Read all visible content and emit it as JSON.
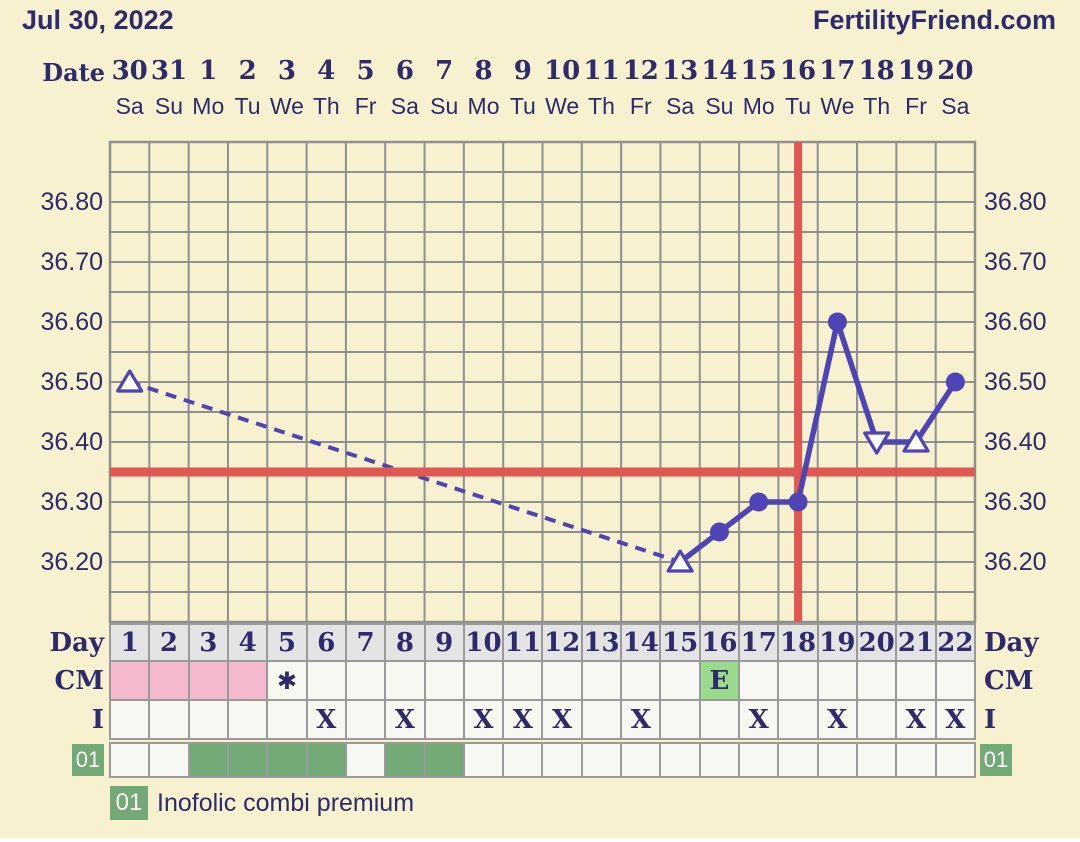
{
  "header": {
    "title": "Jul 30, 2022",
    "brand": "FertilityFriend.com",
    "date_label": "Date"
  },
  "calendar": {
    "dates": [
      "30",
      "31",
      "1",
      "2",
      "3",
      "4",
      "5",
      "6",
      "7",
      "8",
      "9",
      "10",
      "11",
      "12",
      "13",
      "14",
      "15",
      "16",
      "17",
      "18",
      "19",
      "20"
    ],
    "weekdays": [
      "Sa",
      "Su",
      "Mo",
      "Tu",
      "We",
      "Th",
      "Fr",
      "Sa",
      "Su",
      "Mo",
      "Tu",
      "We",
      "Th",
      "Fr",
      "Sa",
      "Su",
      "Mo",
      "Tu",
      "We",
      "Th",
      "Fr",
      "Sa"
    ]
  },
  "chart_data": {
    "type": "line",
    "title": "Basal body temperature chart",
    "x_days": 22,
    "ylim": [
      36.1,
      36.9
    ],
    "yticks": [
      "36.80",
      "36.70",
      "36.60",
      "36.50",
      "36.40",
      "36.30",
      "36.20"
    ],
    "ytick_values": [
      36.8,
      36.7,
      36.6,
      36.5,
      36.4,
      36.3,
      36.2
    ],
    "minor_step": 0.05,
    "grid": "on",
    "coverline_temp": 36.35,
    "ovulation_line_day": 18,
    "series": [
      {
        "name": "temperature",
        "points": [
          {
            "day": 1,
            "temp": 36.5,
            "marker": "triangle-up-open"
          },
          {
            "day": 15,
            "temp": 36.2,
            "marker": "triangle-up-open"
          },
          {
            "day": 16,
            "temp": 36.25,
            "marker": "circle-filled"
          },
          {
            "day": 17,
            "temp": 36.3,
            "marker": "circle-filled"
          },
          {
            "day": 18,
            "temp": 36.3,
            "marker": "circle-filled"
          },
          {
            "day": 19,
            "temp": 36.6,
            "marker": "circle-filled"
          },
          {
            "day": 20,
            "temp": 36.4,
            "marker": "triangle-down-open"
          },
          {
            "day": 21,
            "temp": 36.4,
            "marker": "triangle-up-open"
          },
          {
            "day": 22,
            "temp": 36.5,
            "marker": "circle-filled"
          }
        ]
      }
    ],
    "colors": {
      "line": "#4f44b5",
      "marker_fill": "#4f44b5",
      "marker_open_fill": "#ffffff",
      "red_lines": "#e15852",
      "grid": "#8f8f8f",
      "background": "#f7f1d0"
    }
  },
  "table": {
    "days": [
      "1",
      "2",
      "3",
      "4",
      "5",
      "6",
      "7",
      "8",
      "9",
      "10",
      "11",
      "12",
      "13",
      "14",
      "15",
      "16",
      "17",
      "18",
      "19",
      "20",
      "21",
      "22"
    ],
    "labels": {
      "day": "Day",
      "cm": "CM",
      "i": "I"
    },
    "cm_row": {
      "menses_days": [
        1,
        2,
        3,
        4
      ],
      "spotting_day": 5,
      "spotting_symbol": "✱",
      "egg_day": 16,
      "egg_symbol": "E"
    },
    "i_row": {
      "symbol": "X",
      "days": [
        6,
        8,
        10,
        11,
        12,
        14,
        17,
        19,
        21,
        22
      ]
    },
    "med_row": {
      "id": "01",
      "days": [
        3,
        4,
        5,
        6,
        8,
        9
      ]
    }
  },
  "legend": {
    "badge": "01",
    "text": "Inofolic combi premium"
  }
}
